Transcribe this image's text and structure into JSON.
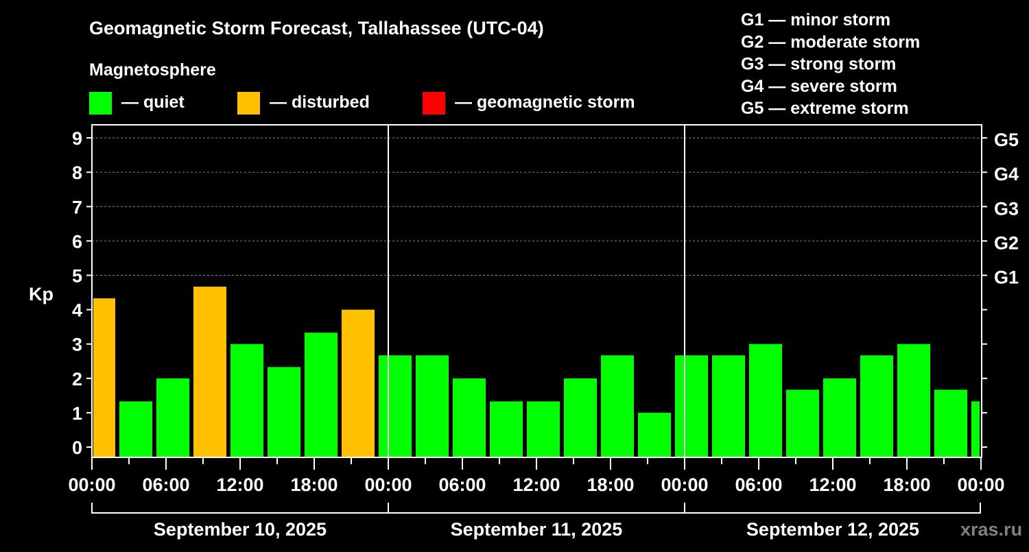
{
  "chart_data": {
    "type": "bar",
    "title": "Geomagnetic Storm Forecast, Tallahassee (UTC-04)",
    "legend_title": "Magnetosphere",
    "legend": [
      {
        "label": "— quiet",
        "color": "#00ff00"
      },
      {
        "label": "— disturbed",
        "color": "#ffc000"
      },
      {
        "label": "— geomagnetic storm",
        "color": "#ff0000"
      }
    ],
    "scale_legend": [
      "G1 — minor storm",
      "G2 — moderate storm",
      "G3 — strong storm",
      "G4 — severe storm",
      "G5 — extreme storm"
    ],
    "ylabel": "Kp",
    "ylim": [
      0,
      9
    ],
    "yticks": [
      "0",
      "1",
      "2",
      "3",
      "4",
      "5",
      "6",
      "7",
      "8",
      "9"
    ],
    "right_ticks": [
      {
        "kp": 5,
        "label": "G1"
      },
      {
        "kp": 6,
        "label": "G2"
      },
      {
        "kp": 7,
        "label": "G3"
      },
      {
        "kp": 8,
        "label": "G4"
      },
      {
        "kp": 9,
        "label": "G5"
      }
    ],
    "xticks": [
      "00:00",
      "06:00",
      "12:00",
      "18:00",
      "00:00",
      "06:00",
      "12:00",
      "18:00",
      "00:00",
      "06:00",
      "12:00",
      "18:00",
      "00:00"
    ],
    "days": [
      "September 10, 2025",
      "September 11, 2025",
      "September 12, 2025"
    ],
    "interval_hours": 3,
    "values": [
      4.33,
      1.33,
      2.0,
      4.67,
      3.0,
      2.33,
      3.33,
      4.0,
      2.67,
      2.67,
      2.0,
      1.33,
      1.33,
      2.0,
      2.67,
      1.0,
      2.67,
      2.67,
      3.0,
      1.67,
      2.0,
      2.67,
      3.0,
      1.67,
      1.33
    ],
    "colors": [
      "#ffc000",
      "#00ff00",
      "#00ff00",
      "#ffc000",
      "#00ff00",
      "#00ff00",
      "#00ff00",
      "#ffc000",
      "#00ff00",
      "#00ff00",
      "#00ff00",
      "#00ff00",
      "#00ff00",
      "#00ff00",
      "#00ff00",
      "#00ff00",
      "#00ff00",
      "#00ff00",
      "#00ff00",
      "#00ff00",
      "#00ff00",
      "#00ff00",
      "#00ff00",
      "#00ff00",
      "#00ff00"
    ],
    "watermark": "xras.ru"
  }
}
